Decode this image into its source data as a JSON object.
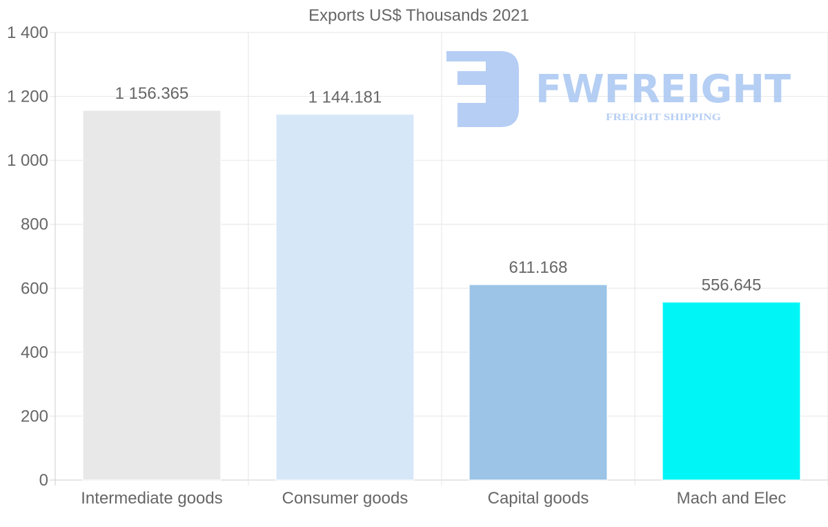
{
  "chart_data": {
    "type": "bar",
    "title": "Exports US$ Thousands 2021",
    "xlabel": "",
    "ylabel": "",
    "categories": [
      "Intermediate goods",
      "Consumer goods",
      "Capital goods",
      "Mach and Elec"
    ],
    "values": [
      1156.365,
      1144.181,
      611.168,
      556.645
    ],
    "data_labels": [
      "1 156.365",
      "1 144.181",
      "611.168",
      "556.645"
    ],
    "colors": [
      "#e8e8e8",
      "#d6e7f8",
      "#9bc4e6",
      "#00f6f6"
    ],
    "ylim": [
      0,
      1400
    ],
    "yticks": [
      0,
      200,
      400,
      600,
      800,
      1000,
      1200,
      1400
    ],
    "ytick_labels": [
      "0",
      "200",
      "400",
      "600",
      "800",
      "1 000",
      "1 200",
      "1 400"
    ],
    "grid": true,
    "legend": "none"
  },
  "watermark": {
    "brand": "FWFREIGHT",
    "tagline": "FREIGHT SHIPPING",
    "color": "#a9c6f2"
  }
}
